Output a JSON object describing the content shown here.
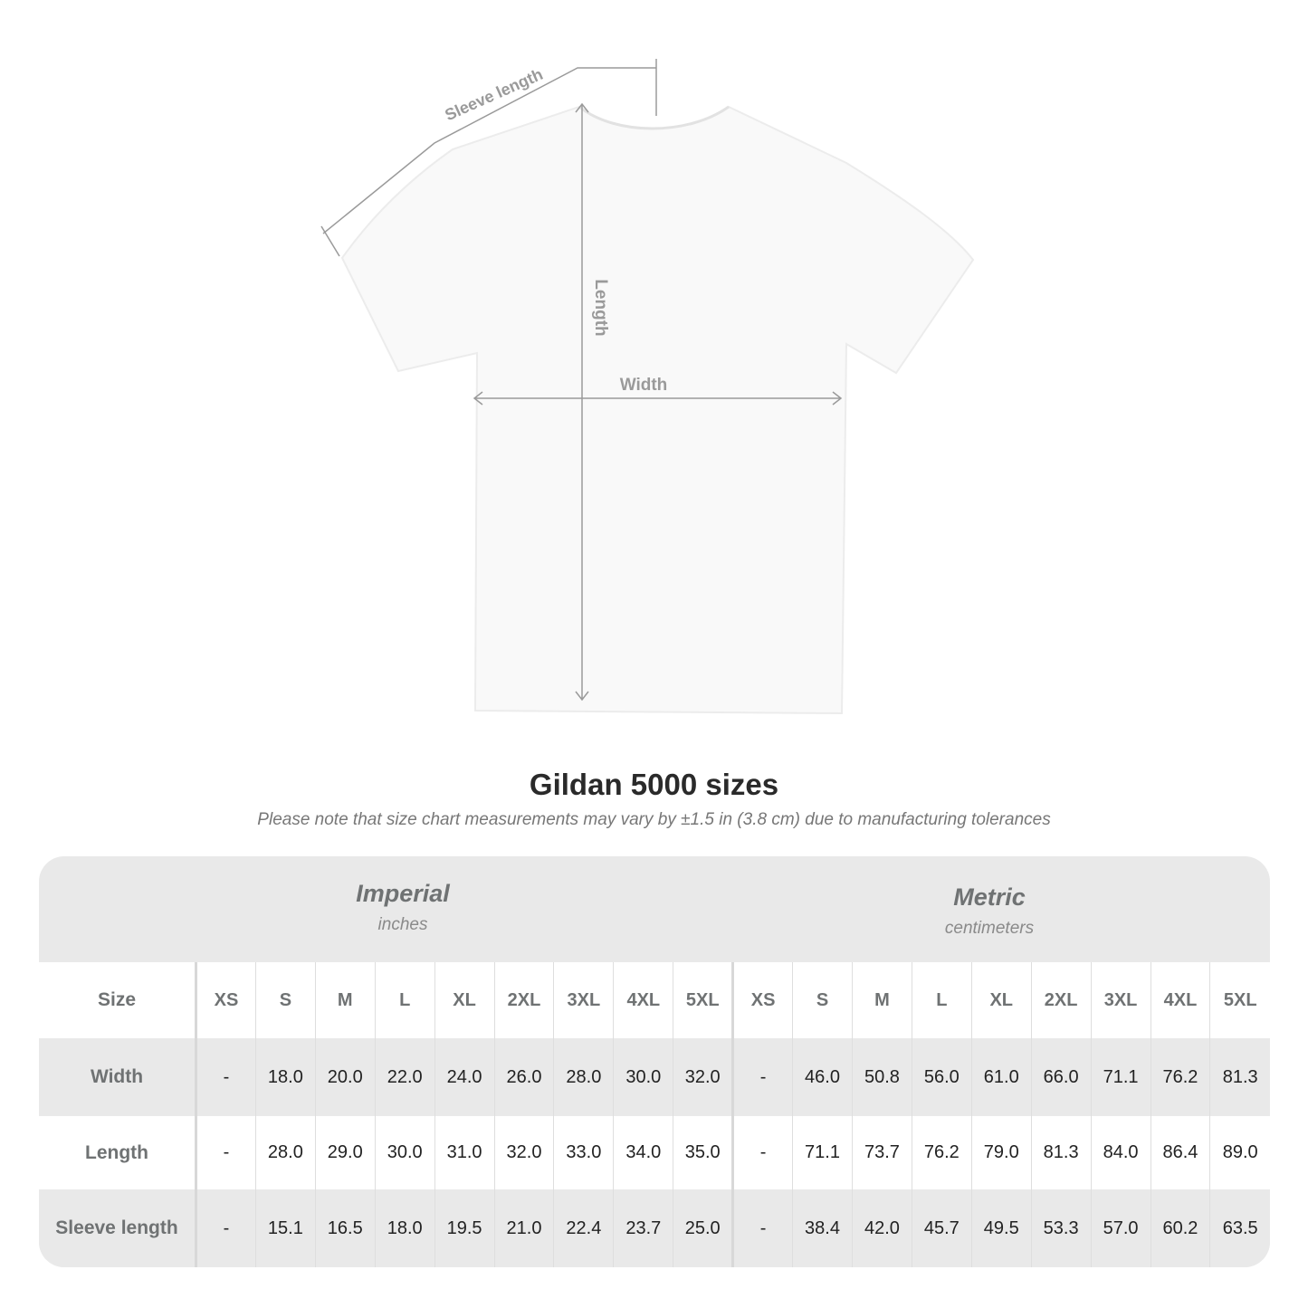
{
  "diagram": {
    "labels": {
      "sleeve": "Sleeve length",
      "length": "Length",
      "width": "Width"
    },
    "line_color": "#9a9a9a"
  },
  "title": "Gildan 5000 sizes",
  "subtitle": "Please note that size chart measurements may vary by ±1.5 in (3.8 cm) due to manufacturing tolerances",
  "table": {
    "imperial": {
      "name": "Imperial",
      "unit": "inches"
    },
    "metric": {
      "name": "Metric",
      "unit": "centimeters"
    },
    "size_label": "Size",
    "sizes": [
      "XS",
      "S",
      "M",
      "L",
      "XL",
      "2XL",
      "3XL",
      "4XL",
      "5XL"
    ],
    "rows": [
      {
        "label": "Width",
        "imperial": [
          "-",
          "18.0",
          "20.0",
          "22.0",
          "24.0",
          "26.0",
          "28.0",
          "30.0",
          "32.0"
        ],
        "metric": [
          "-",
          "46.0",
          "50.8",
          "56.0",
          "61.0",
          "66.0",
          "71.1",
          "76.2",
          "81.3"
        ]
      },
      {
        "label": "Length",
        "imperial": [
          "-",
          "28.0",
          "29.0",
          "30.0",
          "31.0",
          "32.0",
          "33.0",
          "34.0",
          "35.0"
        ],
        "metric": [
          "-",
          "71.1",
          "73.7",
          "76.2",
          "79.0",
          "81.3",
          "84.0",
          "86.4",
          "89.0"
        ]
      },
      {
        "label": "Sleeve length",
        "imperial": [
          "-",
          "15.1",
          "16.5",
          "18.0",
          "19.5",
          "21.0",
          "22.4",
          "23.7",
          "25.0"
        ],
        "metric": [
          "-",
          "38.4",
          "42.0",
          "45.7",
          "49.5",
          "53.3",
          "57.0",
          "60.2",
          "63.5"
        ]
      }
    ]
  }
}
